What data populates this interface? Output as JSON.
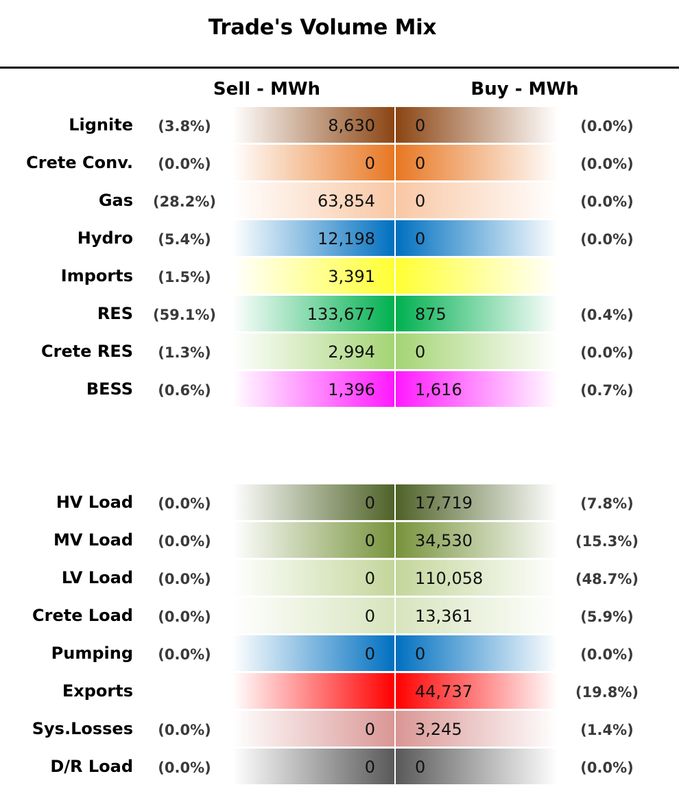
{
  "chart_data": {
    "type": "table",
    "title": "Trade's Volume Mix",
    "columns": {
      "sell": "Sell - MWh",
      "buy": "Buy - MWh"
    },
    "rows": [
      {
        "label": "Lignite",
        "sell_pct": "(3.8%)",
        "sell": "8,630",
        "buy": "0",
        "buy_pct": "(0.0%)",
        "sell_value": 8630,
        "buy_value": 0,
        "color": "#8B4513"
      },
      {
        "label": "Crete Conv.",
        "sell_pct": "(0.0%)",
        "sell": "0",
        "buy": "0",
        "buy_pct": "(0.0%)",
        "sell_value": 0,
        "buy_value": 0,
        "color": "#E87722"
      },
      {
        "label": "Gas",
        "sell_pct": "(28.2%)",
        "sell": "63,854",
        "buy": "0",
        "buy_pct": "(0.0%)",
        "sell_value": 63854,
        "buy_value": 0,
        "color": "#F9C7A4"
      },
      {
        "label": "Hydro",
        "sell_pct": "(5.4%)",
        "sell": "12,198",
        "buy": "0",
        "buy_pct": "(0.0%)",
        "sell_value": 12198,
        "buy_value": 0,
        "color": "#0070C0"
      },
      {
        "label": "Imports",
        "sell_pct": "(1.5%)",
        "sell": "3,391",
        "buy": "",
        "buy_pct": "",
        "sell_value": 3391,
        "buy_value": null,
        "color": "#FFFF33"
      },
      {
        "label": "RES",
        "sell_pct": "(59.1%)",
        "sell": "133,677",
        "buy": "875",
        "buy_pct": "(0.4%)",
        "sell_value": 133677,
        "buy_value": 875,
        "color": "#00B050"
      },
      {
        "label": "Crete RES",
        "sell_pct": "(1.3%)",
        "sell": "2,994",
        "buy": "0",
        "buy_pct": "(0.0%)",
        "sell_value": 2994,
        "buy_value": 0,
        "color": "#A4D474"
      },
      {
        "label": "BESS",
        "sell_pct": "(0.6%)",
        "sell": "1,396",
        "buy": "1,616",
        "buy_pct": "(0.7%)",
        "sell_value": 1396,
        "buy_value": 1616,
        "color": "#FF19FF"
      },
      {
        "label": "HV Load",
        "sell_pct": "(0.0%)",
        "sell": "0",
        "buy": "17,719",
        "buy_pct": "(7.8%)",
        "sell_value": 0,
        "buy_value": 17719,
        "color": "#4F6228"
      },
      {
        "label": "MV Load",
        "sell_pct": "(0.0%)",
        "sell": "0",
        "buy": "34,530",
        "buy_pct": "(15.3%)",
        "sell_value": 0,
        "buy_value": 34530,
        "color": "#77933C"
      },
      {
        "label": "LV Load",
        "sell_pct": "(0.0%)",
        "sell": "0",
        "buy": "110,058",
        "buy_pct": "(48.7%)",
        "sell_value": 0,
        "buy_value": 110058,
        "color": "#C3D69B"
      },
      {
        "label": "Crete Load",
        "sell_pct": "(0.0%)",
        "sell": "0",
        "buy": "13,361",
        "buy_pct": "(5.9%)",
        "sell_value": 0,
        "buy_value": 13361,
        "color": "#D7E4BD"
      },
      {
        "label": "Pumping",
        "sell_pct": "(0.0%)",
        "sell": "0",
        "buy": "0",
        "buy_pct": "(0.0%)",
        "sell_value": 0,
        "buy_value": 0,
        "color": "#0070C0"
      },
      {
        "label": "Exports",
        "sell_pct": "",
        "sell": "",
        "buy": "44,737",
        "buy_pct": "(19.8%)",
        "sell_value": null,
        "buy_value": 44737,
        "color": "#FF0000"
      },
      {
        "label": "Sys.Losses",
        "sell_pct": "(0.0%)",
        "sell": "0",
        "buy": "3,245",
        "buy_pct": "(1.4%)",
        "sell_value": 0,
        "buy_value": 3245,
        "color": "#D99694"
      },
      {
        "label": "D/R Load",
        "sell_pct": "(0.0%)",
        "sell": "0",
        "buy": "0",
        "buy_pct": "(0.0%)",
        "sell_value": 0,
        "buy_value": 0,
        "color": "#595959"
      }
    ]
  }
}
